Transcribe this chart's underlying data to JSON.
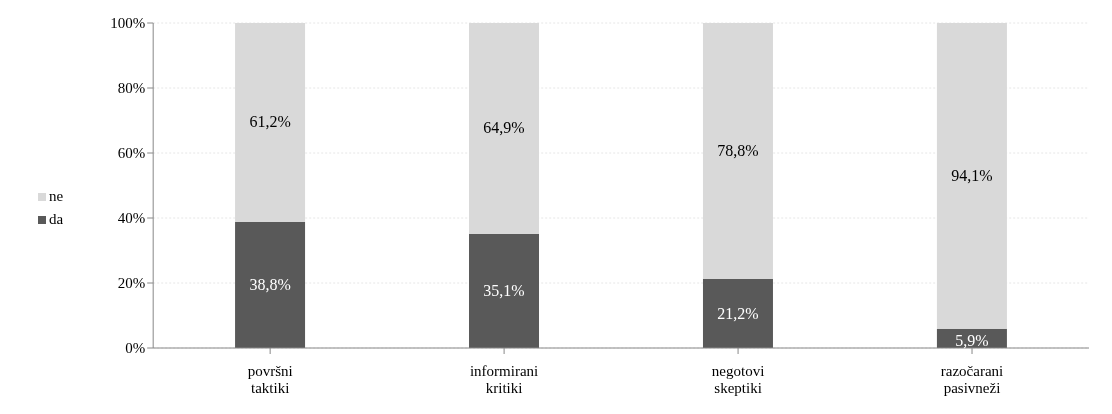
{
  "chart_data": {
    "type": "bar",
    "stacked": true,
    "categories": [
      "površni taktiki",
      "informirani kritiki",
      "negotovi skeptiki",
      "razočarani pasivneži"
    ],
    "series": [
      {
        "name": "da",
        "color": "#595959",
        "values": [
          38.8,
          35.1,
          21.2,
          5.9
        ],
        "value_labels": [
          "38,8%",
          "35,1%",
          "21,2%",
          "5,9%"
        ]
      },
      {
        "name": "ne",
        "color": "#d9d9d9",
        "values": [
          61.2,
          64.9,
          78.8,
          94.1
        ],
        "value_labels": [
          "61,2%",
          "64,9%",
          "78,8%",
          "94,1%"
        ]
      }
    ],
    "ylim": [
      0,
      100
    ],
    "yticks": [
      {
        "value": 0,
        "label": "0%"
      },
      {
        "value": 20,
        "label": "20%"
      },
      {
        "value": 40,
        "label": "40%"
      },
      {
        "value": 60,
        "label": "60%"
      },
      {
        "value": 80,
        "label": "80%"
      },
      {
        "value": 100,
        "label": "100%"
      }
    ],
    "grid": "y",
    "legend": "left"
  }
}
